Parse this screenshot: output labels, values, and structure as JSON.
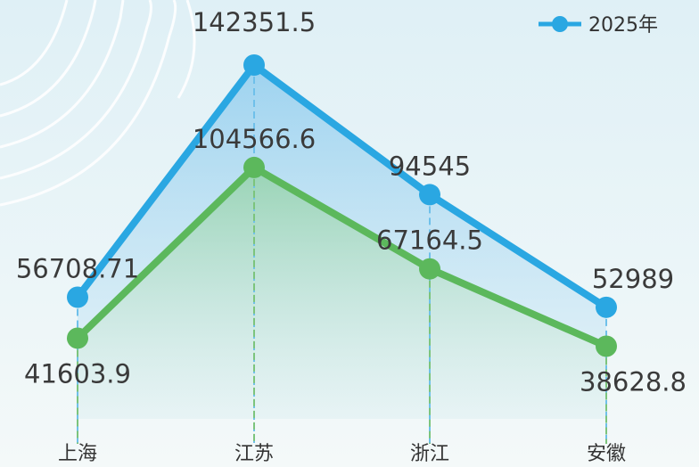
{
  "chart_data": {
    "type": "line",
    "categories": [
      "上海",
      "江苏",
      "浙江",
      "安徽"
    ],
    "series": [
      {
        "name": "2025年",
        "color": "#2aa7e2",
        "values": [
          56708.71,
          142351.5,
          94545,
          52989
        ]
      },
      {
        "color": "#5cb85c",
        "values": [
          41603.9,
          104566.6,
          67164.5,
          38628.8
        ]
      }
    ]
  }
}
